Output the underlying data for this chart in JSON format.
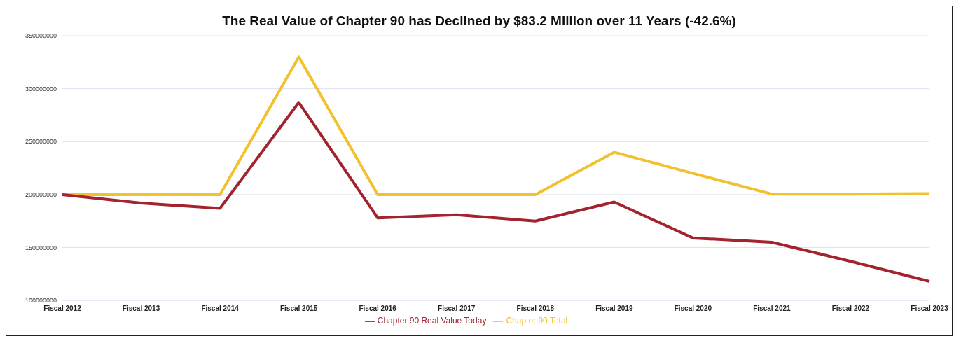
{
  "chart_data": {
    "type": "line",
    "title": "The Real Value of Chapter 90 has Declined by $83.2 Million over 11 Years (-42.6%)",
    "categories": [
      "Fiscal 2012",
      "Fiscal 2013",
      "Fiscal 2014",
      "Fiscal 2015",
      "Fiscal 2016",
      "Fiscal 2017",
      "Fiscal 2018",
      "Fiscal 2019",
      "Fiscal 2020",
      "Fiscal 2021",
      "Fiscal 2022",
      "Fiscal 2023"
    ],
    "series": [
      {
        "name": "Chapter 90 Total",
        "color": "#f2c12e",
        "values": [
          200000000,
          200000000,
          200000000,
          330000000,
          200000000,
          200000000,
          200000000,
          240000000,
          220000000,
          200500000,
          200500000,
          201000000
        ]
      },
      {
        "name": "Chapter 90 Real Value Today",
        "color": "#a3232e",
        "values": [
          200000000,
          192000000,
          187000000,
          287000000,
          178000000,
          181000000,
          175000000,
          193000000,
          159000000,
          155000000,
          137000000,
          118000000
        ]
      }
    ],
    "ylim": [
      100000000,
      350000000
    ],
    "yticks": [
      100000000,
      150000000,
      200000000,
      250000000,
      300000000,
      350000000
    ],
    "grid": "y",
    "legend": "bottom",
    "marker": "none",
    "line_style": "solid"
  }
}
